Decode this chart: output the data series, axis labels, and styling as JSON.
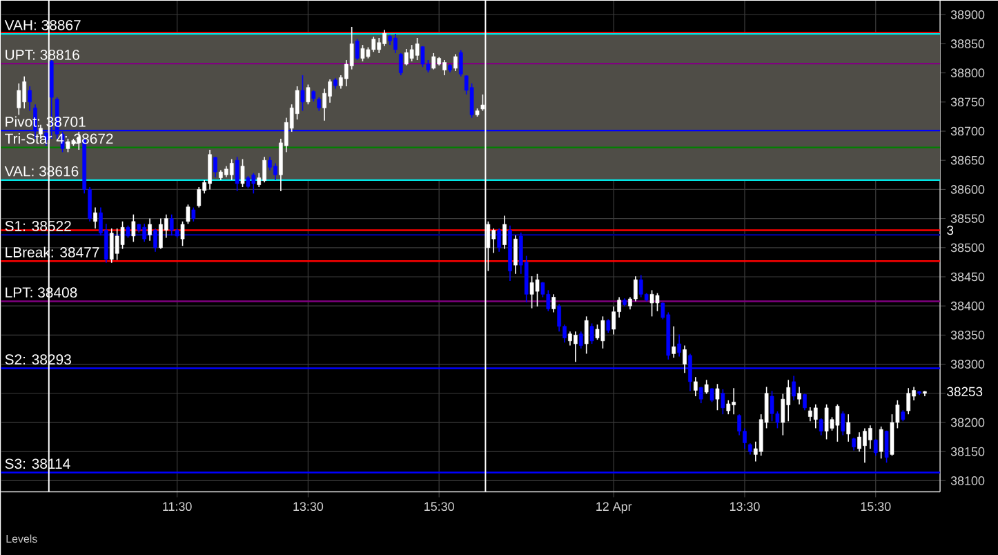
{
  "chart_data": {
    "type": "candlestick",
    "categories": [
      null,
      null,
      null,
      null,
      null,
      null,
      null,
      null,
      null,
      null,
      null,
      null,
      null,
      null,
      null,
      null,
      null,
      null,
      null,
      null,
      null,
      null,
      null,
      null,
      null,
      null,
      null,
      null,
      null,
      "11:30",
      null,
      null,
      null,
      null,
      null,
      null,
      null,
      null,
      null,
      null,
      null,
      null,
      null,
      null,
      null,
      null,
      null,
      null,
      null,
      null,
      null,
      null,
      null,
      "13:30",
      null,
      null,
      null,
      null,
      null,
      null,
      null,
      null,
      null,
      null,
      null,
      null,
      null,
      null,
      null,
      null,
      null,
      null,
      null,
      null,
      null,
      null,
      null,
      "15:30",
      null,
      null,
      null,
      null,
      null,
      null,
      null,
      null,
      null,
      null,
      null,
      null,
      null,
      null,
      null,
      null,
      null,
      null,
      null,
      null,
      null,
      null,
      null,
      null,
      null,
      null,
      null,
      null,
      null,
      null,
      null,
      "12 Apr",
      null,
      null,
      null,
      null,
      null,
      null,
      null,
      null,
      null,
      null,
      null,
      null,
      null,
      null,
      null,
      null,
      null,
      null,
      null,
      null,
      null,
      null,
      null,
      "13:30",
      null,
      null,
      null,
      null,
      null,
      null,
      null,
      null,
      null,
      null,
      null,
      null,
      null,
      null,
      null,
      null,
      null,
      null,
      null,
      null,
      null,
      null,
      null,
      "15:30",
      null,
      null,
      null,
      null,
      null,
      null,
      null,
      null,
      null
    ],
    "ohlc": [
      [
        38740,
        38782,
        38728,
        38770
      ],
      [
        38750,
        38794,
        38739,
        38785
      ],
      [
        38770,
        38777,
        38735,
        38750
      ],
      [
        38740,
        38746,
        38687,
        38700
      ],
      [
        38695,
        38711,
        38687,
        38705
      ],
      [
        38697,
        38699,
        38675,
        38685
      ],
      [
        38820,
        38822,
        38687,
        38758
      ],
      [
        38755,
        38758,
        38687,
        38695
      ],
      [
        38695,
        38699,
        38664,
        38670
      ],
      [
        38670,
        38687,
        38664,
        38682
      ],
      [
        38678,
        38687,
        38675,
        38684
      ],
      [
        38680,
        38699,
        38668,
        38690
      ],
      [
        38685,
        38687,
        38593,
        38600
      ],
      [
        38600,
        38604,
        38545,
        38550
      ],
      [
        38545,
        38569,
        38533,
        38560
      ],
      [
        38560,
        38569,
        38521,
        38525
      ],
      [
        38530,
        38541,
        38474,
        38480
      ],
      [
        38480,
        38533,
        38474,
        38525
      ],
      [
        38490,
        38533,
        38479,
        38520
      ],
      [
        38505,
        38545,
        38498,
        38535
      ],
      [
        38535,
        38538,
        38517,
        38520
      ],
      [
        38520,
        38557,
        38510,
        38545
      ],
      [
        38540,
        38541,
        38526,
        38530
      ],
      [
        38535,
        38541,
        38510,
        38515
      ],
      [
        38522,
        38550,
        38512,
        38540
      ],
      [
        38530,
        38533,
        38493,
        38500
      ],
      [
        38500,
        38550,
        38498,
        38540
      ],
      [
        38530,
        38557,
        38517,
        38550
      ],
      [
        38550,
        38557,
        38521,
        38530
      ],
      [
        38530,
        38533,
        38517,
        38520
      ],
      [
        38515,
        38545,
        38503,
        38540
      ],
      [
        38545,
        38574,
        38541,
        38570
      ],
      [
        38565,
        38569,
        38545,
        38550
      ],
      [
        38572,
        38604,
        38569,
        38600
      ],
      [
        38598,
        38616,
        38593,
        38612
      ],
      [
        38610,
        38668,
        38600,
        38660
      ],
      [
        38655,
        38656,
        38621,
        38630
      ],
      [
        38620,
        38633,
        38616,
        38630
      ],
      [
        38625,
        38640,
        38621,
        38635
      ],
      [
        38625,
        38652,
        38616,
        38645
      ],
      [
        38650,
        38656,
        38597,
        38610
      ],
      [
        38610,
        38652,
        38604,
        38640
      ],
      [
        38620,
        38623,
        38602,
        38605
      ],
      [
        38625,
        38628,
        38593,
        38610
      ],
      [
        38608,
        38628,
        38604,
        38620
      ],
      [
        38615,
        38656,
        38612,
        38650
      ],
      [
        38650,
        38656,
        38633,
        38638
      ],
      [
        38640,
        38645,
        38616,
        38625
      ],
      [
        38625,
        38687,
        38597,
        38680
      ],
      [
        38675,
        38723,
        38664,
        38715
      ],
      [
        38705,
        38746,
        38699,
        38740
      ],
      [
        38730,
        38777,
        38720,
        38770
      ],
      [
        38770,
        38796,
        38735,
        38750
      ],
      [
        38750,
        38780,
        38746,
        38775
      ],
      [
        38768,
        38770,
        38751,
        38756
      ],
      [
        38755,
        38758,
        38735,
        38740
      ],
      [
        38740,
        38773,
        38718,
        38765
      ],
      [
        38760,
        38789,
        38749,
        38785
      ],
      [
        38788,
        38791,
        38773,
        38778
      ],
      [
        38778,
        38796,
        38773,
        38792
      ],
      [
        38790,
        38822,
        38777,
        38815
      ],
      [
        38812,
        38879,
        38806,
        38850
      ],
      [
        38855,
        38858,
        38822,
        38825
      ],
      [
        38825,
        38848,
        38820,
        38842
      ],
      [
        38828,
        38844,
        38825,
        38840
      ],
      [
        38840,
        38862,
        38836,
        38858
      ],
      [
        38840,
        38860,
        38834,
        38852
      ],
      [
        38850,
        38874,
        38846,
        38868
      ],
      [
        38863,
        38865,
        38848,
        38855
      ],
      [
        38860,
        38867,
        38834,
        38840
      ],
      [
        38832,
        38834,
        38796,
        38800
      ],
      [
        38815,
        38841,
        38813,
        38835
      ],
      [
        38825,
        38848,
        38820,
        38840
      ],
      [
        38830,
        38860,
        38822,
        38850
      ],
      [
        38845,
        38846,
        38810,
        38815
      ],
      [
        38815,
        38822,
        38801,
        38805
      ],
      [
        38808,
        38834,
        38806,
        38828
      ],
      [
        38815,
        38827,
        38813,
        38825
      ],
      [
        38805,
        38822,
        38796,
        38818
      ],
      [
        38813,
        38815,
        38801,
        38805
      ],
      [
        38808,
        38832,
        38803,
        38828
      ],
      [
        38835,
        38839,
        38794,
        38798
      ],
      [
        38795,
        38796,
        38763,
        38770
      ],
      [
        38775,
        38782,
        38723,
        38728
      ],
      [
        38728,
        38739,
        38725,
        38735
      ],
      [
        38738,
        38763,
        38735,
        38745
      ],
      [
        38500,
        38545,
        38460,
        38540
      ],
      [
        38515,
        38533,
        38491,
        38530
      ],
      [
        38530,
        38533,
        38493,
        38500
      ],
      [
        38505,
        38555,
        38498,
        38540
      ],
      [
        38530,
        38538,
        38443,
        38460
      ],
      [
        38470,
        38521,
        38455,
        38515
      ],
      [
        38520,
        38526,
        38455,
        38470
      ],
      [
        38475,
        38486,
        38406,
        38420
      ],
      [
        38420,
        38451,
        38396,
        38440
      ],
      [
        38425,
        38455,
        38399,
        38445
      ],
      [
        38440,
        38441,
        38415,
        38420
      ],
      [
        38420,
        38427,
        38391,
        38395
      ],
      [
        38395,
        38420,
        38389,
        38415
      ],
      [
        38400,
        38403,
        38356,
        38365
      ],
      [
        38365,
        38368,
        38337,
        38345
      ],
      [
        38340,
        38356,
        38332,
        38352
      ],
      [
        38335,
        38356,
        38304,
        38350
      ],
      [
        38352,
        38356,
        38327,
        38332
      ],
      [
        38335,
        38382,
        38318,
        38375
      ],
      [
        38365,
        38370,
        38335,
        38340
      ],
      [
        38345,
        38368,
        38342,
        38360
      ],
      [
        38340,
        38382,
        38327,
        38375
      ],
      [
        38375,
        38377,
        38354,
        38358
      ],
      [
        38360,
        38399,
        38351,
        38390
      ],
      [
        38390,
        38415,
        38380,
        38410
      ],
      [
        38410,
        38413,
        38399,
        38402
      ],
      [
        38400,
        38415,
        38394,
        38412
      ],
      [
        38412,
        38451,
        38408,
        38445
      ],
      [
        38445,
        38453,
        38415,
        38420
      ],
      [
        38420,
        38422,
        38408,
        38410
      ],
      [
        38405,
        38427,
        38382,
        38420
      ],
      [
        38405,
        38422,
        38391,
        38418
      ],
      [
        38405,
        38406,
        38377,
        38380
      ],
      [
        38385,
        38389,
        38308,
        38315
      ],
      [
        38318,
        38365,
        38311,
        38330
      ],
      [
        38335,
        38351,
        38313,
        38320
      ],
      [
        38300,
        38332,
        38285,
        38325
      ],
      [
        38315,
        38318,
        38254,
        38270
      ],
      [
        38255,
        38278,
        38245,
        38270
      ],
      [
        38260,
        38261,
        38233,
        38240
      ],
      [
        38252,
        38273,
        38249,
        38265
      ],
      [
        38258,
        38259,
        38235,
        38238
      ],
      [
        38240,
        38266,
        38221,
        38258
      ],
      [
        38250,
        38257,
        38214,
        38225
      ],
      [
        38220,
        38238,
        38214,
        38232
      ],
      [
        38230,
        38259,
        38214,
        38235
      ],
      [
        38212,
        38214,
        38178,
        38185
      ],
      [
        38185,
        38190,
        38155,
        38165
      ],
      [
        38162,
        38164,
        38145,
        38150
      ],
      [
        38145,
        38167,
        38133,
        38155
      ],
      [
        38150,
        38214,
        38143,
        38205
      ],
      [
        38200,
        38261,
        38190,
        38250
      ],
      [
        38245,
        38254,
        38202,
        38215
      ],
      [
        38215,
        38219,
        38190,
        38200
      ],
      [
        38200,
        38249,
        38178,
        38240
      ],
      [
        38230,
        38273,
        38202,
        38260
      ],
      [
        38270,
        38280,
        38238,
        38245
      ],
      [
        38240,
        38261,
        38231,
        38250
      ],
      [
        38248,
        38249,
        38221,
        38225
      ],
      [
        38210,
        38226,
        38202,
        38220
      ],
      [
        38205,
        38231,
        38190,
        38225
      ],
      [
        38205,
        38207,
        38178,
        38185
      ],
      [
        38185,
        38231,
        38171,
        38225
      ],
      [
        38190,
        38209,
        38186,
        38205
      ],
      [
        38195,
        38231,
        38167,
        38228
      ],
      [
        38215,
        38219,
        38178,
        38185
      ],
      [
        38180,
        38214,
        38167,
        38200
      ],
      [
        38172,
        38174,
        38152,
        38158
      ],
      [
        38155,
        38183,
        38150,
        38175
      ],
      [
        38160,
        38190,
        38131,
        38185
      ],
      [
        38170,
        38195,
        38155,
        38190
      ],
      [
        38170,
        38171,
        38143,
        38148
      ],
      [
        38150,
        38193,
        38138,
        38188
      ],
      [
        38185,
        38186,
        38131,
        38140
      ],
      [
        38145,
        38214,
        38143,
        38200
      ],
      [
        38200,
        38238,
        38190,
        38230
      ],
      [
        38218,
        38221,
        38202,
        38205
      ],
      [
        38220,
        38259,
        38214,
        38250
      ],
      [
        38245,
        38261,
        38238,
        38255
      ],
      [
        38253,
        38254,
        38247,
        38250
      ],
      [
        38250,
        38254,
        38245,
        38253
      ]
    ],
    "colors": [
      "#ffffff",
      "#ffffff",
      "#0000ff",
      "#0000ff",
      "#ffffff",
      "#0000ff",
      "#0000ff",
      "#0000ff",
      "#0000ff",
      "#ffffff",
      "#ffffff",
      "#ffffff",
      "#0000ff",
      "#0000ff",
      "#ffffff",
      "#0000ff",
      "#0000ff",
      "#ffffff",
      "#ffffff",
      "#ffffff",
      "#0000ff",
      "#ffffff",
      "#0000ff",
      "#0000ff",
      "#ffffff",
      "#0000ff",
      "#ffffff",
      "#ffffff",
      "#0000ff",
      "#0000ff",
      "#ffffff",
      "#ffffff",
      "#0000ff",
      "#ffffff",
      "#ffffff",
      "#ffffff",
      "#0000ff",
      "#ffffff",
      "#ffffff",
      "#ffffff",
      "#0000ff",
      "#ffffff",
      "#0000ff",
      "#0000ff",
      "#ffffff",
      "#ffffff",
      "#0000ff",
      "#0000ff",
      "#ffffff",
      "#ffffff",
      "#ffffff",
      "#ffffff",
      "#0000ff",
      "#ffffff",
      "#0000ff",
      "#0000ff",
      "#ffffff",
      "#ffffff",
      "#0000ff",
      "#ffffff",
      "#ffffff",
      "#ffffff",
      "#0000ff",
      "#ffffff",
      "#ffffff",
      "#ffffff",
      "#ffffff",
      "#ffffff",
      "#0000ff",
      "#0000ff",
      "#0000ff",
      "#ffffff",
      "#ffffff",
      "#ffffff",
      "#0000ff",
      "#0000ff",
      "#ffffff",
      "#ffffff",
      "#ffffff",
      "#0000ff",
      "#ffffff",
      "#0000ff",
      "#0000ff",
      "#0000ff",
      "#ffffff",
      "#ffffff",
      "#ffffff",
      "#ffffff",
      "#0000ff",
      "#ffffff",
      "#0000ff",
      "#ffffff",
      "#0000ff",
      "#0000ff",
      "#ffffff",
      "#ffffff",
      "#0000ff",
      "#0000ff",
      "#ffffff",
      "#0000ff",
      "#0000ff",
      "#ffffff",
      "#ffffff",
      "#0000ff",
      "#ffffff",
      "#0000ff",
      "#ffffff",
      "#ffffff",
      "#0000ff",
      "#ffffff",
      "#ffffff",
      "#0000ff",
      "#ffffff",
      "#ffffff",
      "#0000ff",
      "#0000ff",
      "#ffffff",
      "#ffffff",
      "#0000ff",
      "#0000ff",
      "#ffffff",
      "#0000ff",
      "#ffffff",
      "#0000ff",
      "#ffffff",
      "#0000ff",
      "#ffffff",
      "#0000ff",
      "#ffffff",
      "#0000ff",
      "#ffffff",
      "#ffffff",
      "#0000ff",
      "#0000ff",
      "#0000ff",
      "#ffffff",
      "#ffffff",
      "#ffffff",
      "#0000ff",
      "#0000ff",
      "#ffffff",
      "#ffffff",
      "#0000ff",
      "#ffffff",
      "#0000ff",
      "#ffffff",
      "#ffffff",
      "#0000ff",
      "#ffffff",
      "#ffffff",
      "#ffffff",
      "#0000ff",
      "#ffffff",
      "#0000ff",
      "#ffffff",
      "#ffffff",
      "#ffffff",
      "#0000ff",
      "#ffffff",
      "#0000ff",
      "#ffffff",
      "#ffffff",
      "#0000ff",
      "#ffffff",
      "#ffffff",
      "#0000ff",
      "#ffffff"
    ],
    "ylim": [
      38081,
      38924
    ],
    "yticks": [
      38100,
      38150,
      38200,
      {
        "value": 38250,
        "label": null
      },
      38300,
      38350,
      38400,
      38450,
      38500,
      38550,
      38600,
      38650,
      38700,
      38750,
      38800,
      38850,
      38900
    ],
    "grid": true,
    "bands": [
      {
        "axis": "y",
        "from": 38616,
        "to": 38867,
        "color": "#4f4d47"
      }
    ],
    "ref_lines": [
      {
        "axis": "y",
        "value": 38869,
        "color": "#ff0000"
      },
      {
        "axis": "y",
        "value": 38867,
        "label": "VAH: 38867",
        "color": "#00e5e5"
      },
      {
        "axis": "y",
        "value": 38816,
        "label": "UPT: 38816",
        "color": "#800080"
      },
      {
        "axis": "y",
        "value": 38701,
        "label": "Pivot: 38701",
        "color": "#0000ff"
      },
      {
        "axis": "y",
        "value": 38672,
        "label": "Tri-Star 4: 38672",
        "color": "#008000"
      },
      {
        "axis": "y",
        "value": 38616,
        "label": "VAL: 38616",
        "color": "#00e5e5"
      },
      {
        "axis": "y",
        "value": 38530,
        "color": "#ff0000"
      },
      {
        "axis": "y",
        "value": 38522,
        "label": "S1: 38522",
        "color": "#00008b"
      },
      {
        "axis": "y",
        "value": 38477,
        "label": "LBreak: 38477",
        "color": "#ff0000"
      },
      {
        "axis": "y",
        "value": 38408,
        "label": "LPT: 38408",
        "color": "#800080"
      },
      {
        "axis": "y",
        "value": 38293,
        "label": "S2: 38293",
        "color": "#0000ff"
      },
      {
        "axis": "y",
        "value": 38114,
        "label": "S3: 38114",
        "color": "#0000ff"
      }
    ],
    "annotations": [
      "Levels",
      "3",
      "38253"
    ]
  }
}
